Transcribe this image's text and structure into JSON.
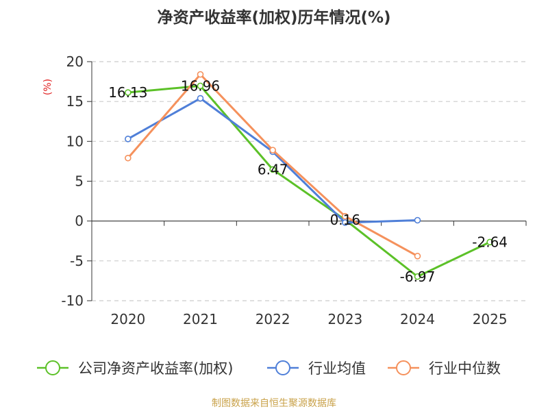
{
  "chart_data": {
    "type": "line",
    "title": "净资产收益率(加权)历年情况(%)",
    "ylabel": "(%)",
    "categories": [
      "2020",
      "2021",
      "2022",
      "2023",
      "2024",
      "2025"
    ],
    "ylim": [
      -10,
      20
    ],
    "yticks": [
      20,
      15,
      10,
      5,
      0,
      -5,
      -10
    ],
    "grid": true,
    "legend_position": "bottom",
    "series": [
      {
        "name": "公司净资产收益率(加权)",
        "color": "#5cc128",
        "values": [
          16.13,
          16.96,
          6.47,
          0.16,
          -6.97,
          -2.64
        ],
        "labels": [
          "16.13",
          "16.96",
          "6.47",
          "0.16",
          "-6.97",
          "-2.64"
        ]
      },
      {
        "name": "行业均值",
        "color": "#4f7fd8",
        "values": [
          10.3,
          15.4,
          8.7,
          -0.2,
          0.1,
          null
        ]
      },
      {
        "name": "行业中位数",
        "color": "#f5915c",
        "values": [
          7.9,
          18.4,
          8.9,
          0.6,
          -4.4,
          null
        ]
      }
    ]
  },
  "unit_color": "#e02020",
  "grid_color": "#cccccc",
  "axis_color": "#333333",
  "source": "制图数据来自恒生聚源数据库"
}
